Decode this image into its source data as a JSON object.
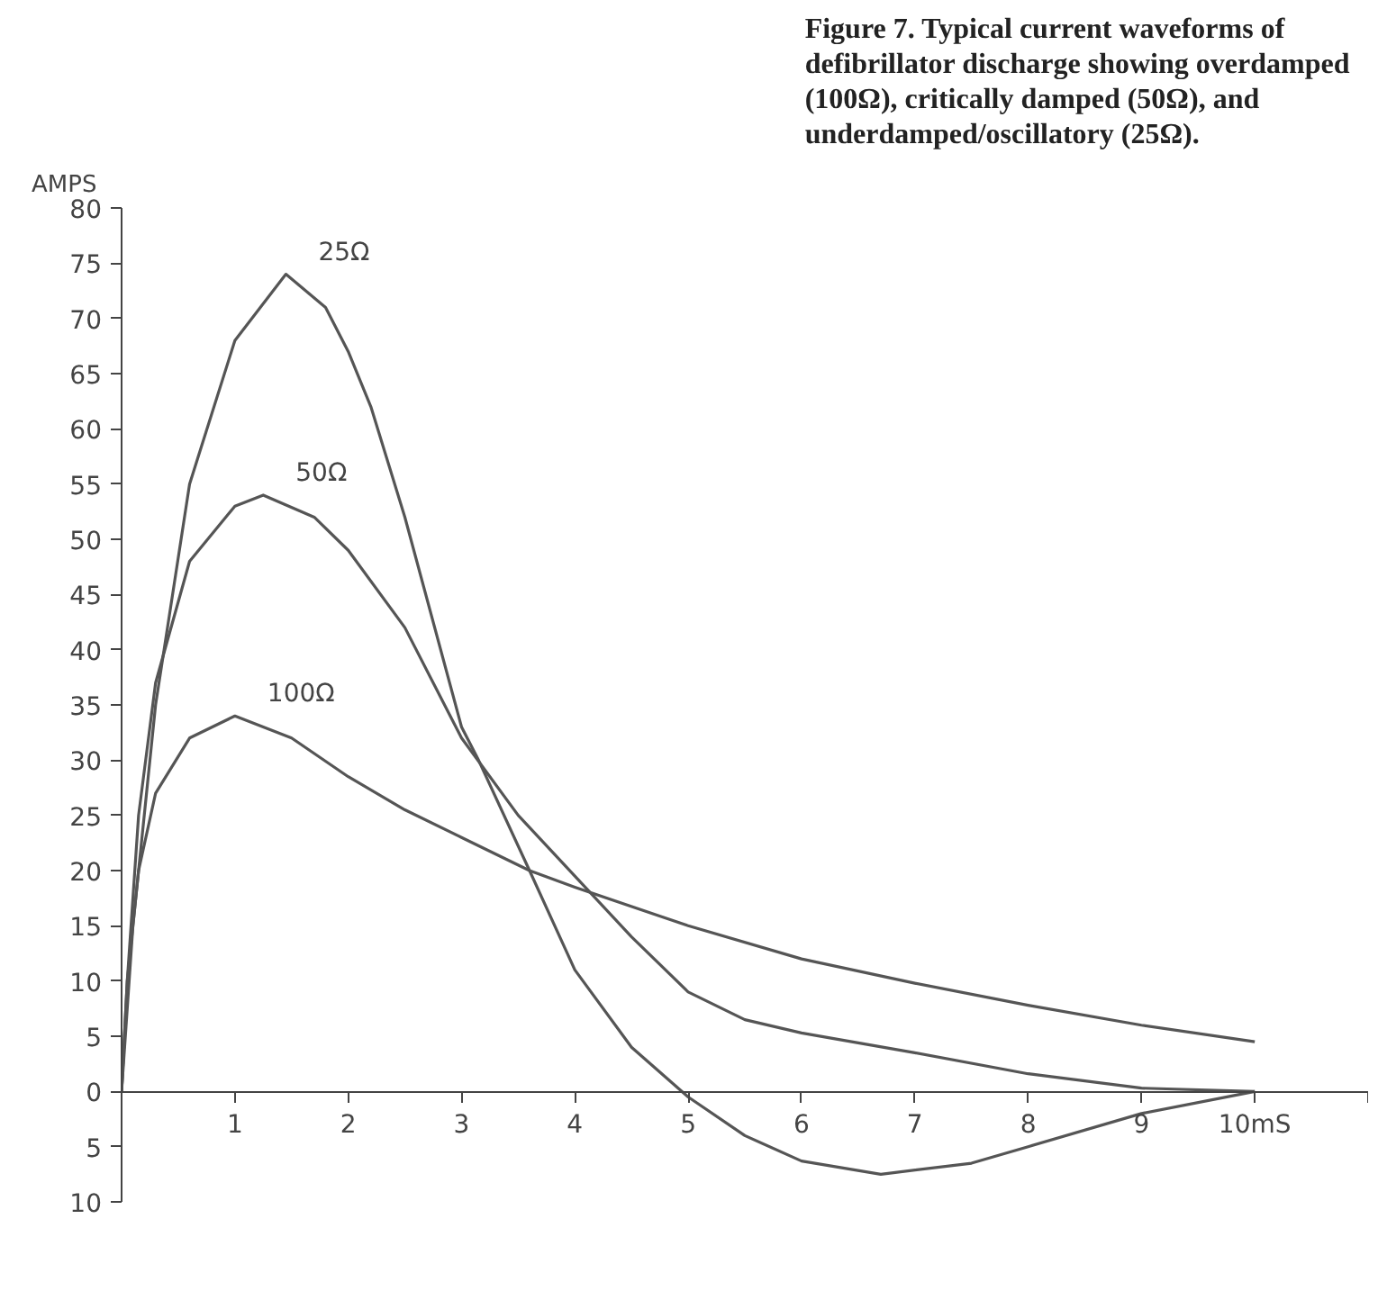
{
  "chart_data": {
    "type": "line",
    "title": "Figure 7. Typical current waveforms of defibrillator discharge showing overdamped (100Ω), critically damped (50Ω), and underdamped/oscillatory (25Ω).",
    "ylabel": "AMPS",
    "xlim": [
      0,
      11
    ],
    "xticks": [
      1,
      2,
      3,
      4,
      5,
      6,
      7,
      8,
      9,
      {
        "value": 10,
        "label": "10mS"
      },
      {
        "value": 11,
        "label": null
      }
    ],
    "ylim": [
      -10,
      80
    ],
    "yticks": [
      {
        "value": -10,
        "label": "10"
      },
      {
        "value": -5,
        "label": "5"
      },
      0,
      5,
      10,
      15,
      20,
      25,
      30,
      35,
      40,
      45,
      50,
      55,
      60,
      65,
      70,
      75,
      80
    ],
    "grid": false,
    "marker": "none",
    "line_style": "solid",
    "series": [
      {
        "name": "25Ω",
        "color": "#555555",
        "x": [
          0,
          0.1,
          0.3,
          0.6,
          1,
          1.45,
          1.8,
          2,
          2.2,
          2.5,
          3,
          3.15,
          3.6,
          4,
          4.5,
          5,
          5.5,
          6,
          6.7,
          7.5,
          8,
          9,
          10
        ],
        "values": [
          0,
          15,
          35,
          55,
          68,
          74,
          71,
          67,
          62,
          52,
          33,
          30,
          20,
          11,
          4,
          -0.5,
          -4,
          -6.3,
          -7.5,
          -6.5,
          -5,
          -2,
          0
        ]
      },
      {
        "name": "50Ω",
        "color": "#555555",
        "x": [
          0,
          0.05,
          0.15,
          0.3,
          0.6,
          1,
          1.25,
          1.7,
          2,
          2.5,
          3,
          3.5,
          4,
          4.5,
          5,
          5.5,
          6,
          7,
          8,
          9,
          10
        ],
        "values": [
          0,
          10,
          25,
          37,
          48,
          53,
          54,
          52,
          49,
          42,
          32,
          25,
          19.5,
          14,
          9,
          6.5,
          5.3,
          3.5,
          1.6,
          0.3,
          0
        ]
      },
      {
        "name": "100Ω",
        "color": "#555555",
        "x": [
          0,
          0.05,
          0.15,
          0.3,
          0.6,
          1,
          1.5,
          2,
          2.5,
          3,
          3.6,
          4,
          5,
          6,
          7,
          8,
          9,
          10
        ],
        "values": [
          0,
          10,
          20,
          27,
          32,
          34,
          32,
          28.5,
          25.5,
          23,
          20,
          18.5,
          15,
          12,
          9.8,
          7.8,
          6,
          4.5
        ]
      }
    ]
  }
}
